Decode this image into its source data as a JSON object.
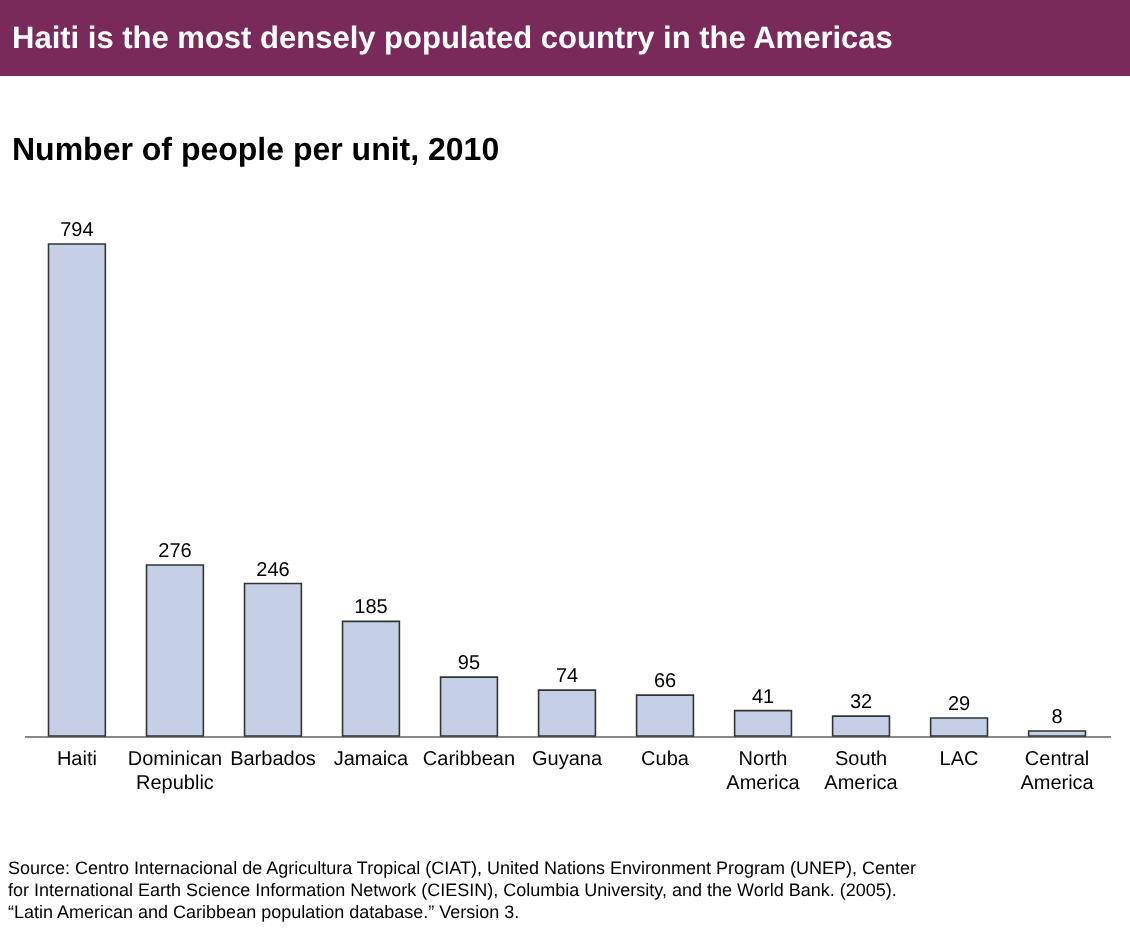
{
  "chart_data": {
    "type": "bar",
    "title": "Haiti  is the most densely populated country in the Americas",
    "subtitle": "Number of people per unit, 2010",
    "categories": [
      "Haiti",
      "Dominican Republic",
      "Barbados",
      "Jamaica",
      "Caribbean",
      "Guyana",
      "Cuba",
      "North America",
      "South America",
      "LAC",
      "Central America"
    ],
    "values": [
      794,
      276,
      246,
      185,
      95,
      74,
      66,
      41,
      32,
      29,
      8
    ],
    "color": "#c5d0e6",
    "data_labels": true,
    "grid": false,
    "tick_labels": "x",
    "annotations": [
      "Source: Centro Internacional de Agricultura Tropical (CIAT), United Nations Environment Program (UNEP), Center for International Earth Science Information Network (CIESIN), Columbia University, and the World Bank. (2005). “Latin American and Caribbean population database.” Version 3."
    ]
  }
}
